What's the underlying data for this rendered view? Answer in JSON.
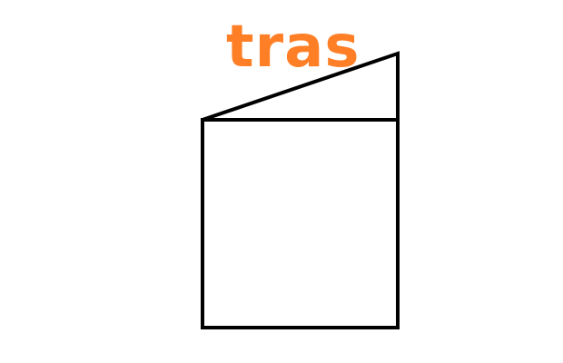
{
  "diagram": {
    "label": "tras",
    "label_color": "#FF7F27",
    "stroke_color": "#000000",
    "background_color": "#FFFFFF",
    "shapes": [
      "square",
      "slanted-flap-triangle"
    ]
  }
}
